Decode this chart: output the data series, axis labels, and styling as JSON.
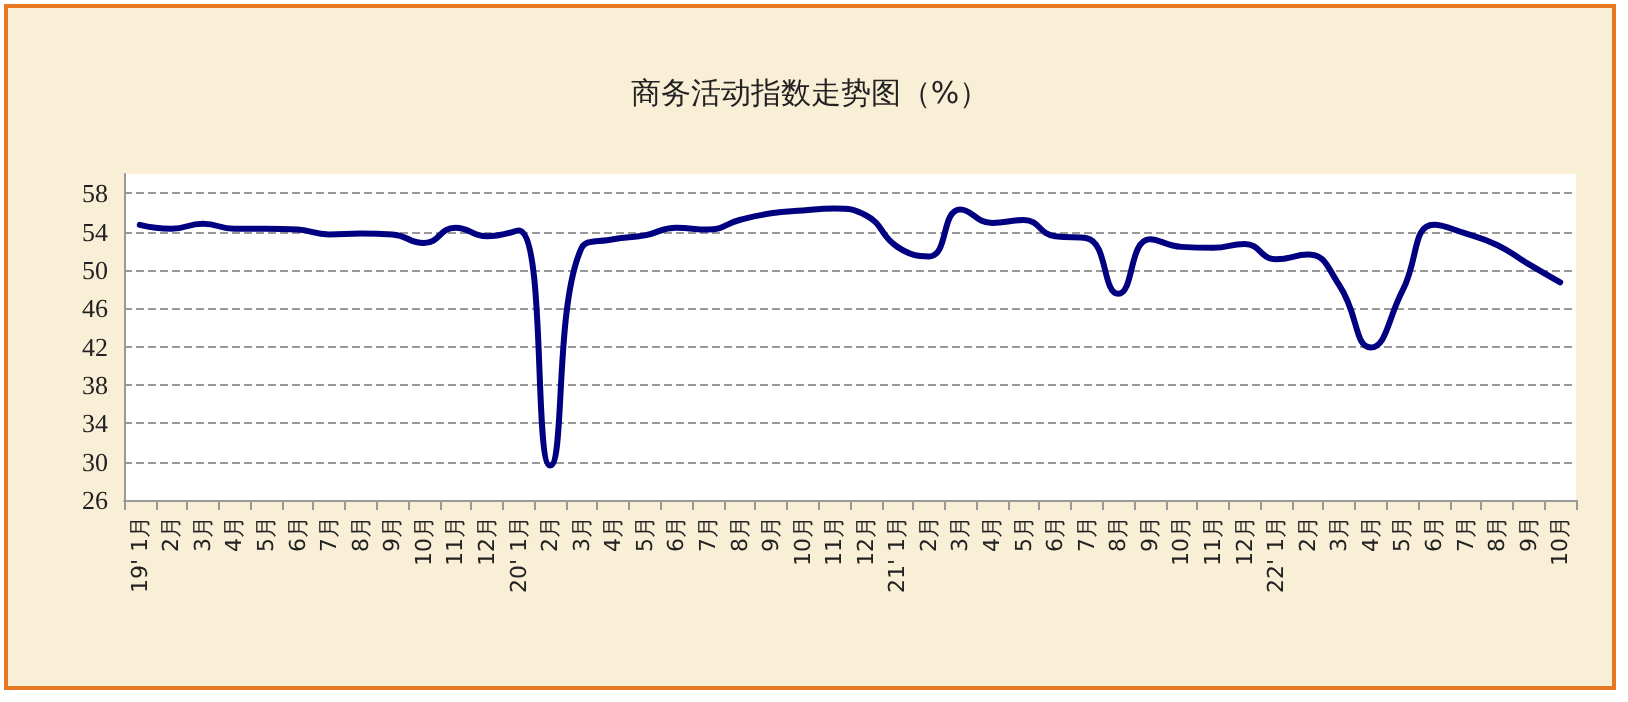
{
  "chart_data": {
    "type": "line",
    "title": "商务活动指数走势图（%）",
    "categories": [
      "19' 1月",
      "2月",
      "3月",
      "4月",
      "5月",
      "6月",
      "7月",
      "8月",
      "9月",
      "10月",
      "11月",
      "12月",
      "20' 1月",
      "2月",
      "3月",
      "4月",
      "5月",
      "6月",
      "7月",
      "8月",
      "9月",
      "10月",
      "11月",
      "12月",
      "21' 1月",
      "2月",
      "3月",
      "4月",
      "5月",
      "6月",
      "7月",
      "8月",
      "9月",
      "10月",
      "11月",
      "12月",
      "22' 1月",
      "2月",
      "3月",
      "4月",
      "5月",
      "6月",
      "7月",
      "8月",
      "9月",
      "10月"
    ],
    "series": [
      {
        "color": "#000080",
        "values": [
          54.7,
          54.3,
          54.8,
          54.3,
          54.3,
          54.2,
          53.7,
          53.8,
          53.7,
          52.8,
          54.4,
          53.5,
          54.1,
          29.6,
          52.3,
          53.2,
          53.6,
          54.4,
          54.2,
          55.2,
          55.9,
          56.2,
          56.4,
          55.7,
          52.4,
          51.4,
          56.3,
          54.9,
          55.2,
          53.5,
          53.3,
          47.5,
          53.2,
          52.4,
          52.3,
          52.7,
          51.1,
          51.6,
          48.4,
          41.9,
          47.8,
          54.7,
          53.8,
          52.6,
          50.6,
          48.7
        ]
      }
    ],
    "ylim": [
      26,
      60
    ],
    "yticks": [
      26,
      30,
      34,
      38,
      42,
      46,
      50,
      54,
      58
    ],
    "grid": "y",
    "marker": "none",
    "line_style": "solid"
  }
}
